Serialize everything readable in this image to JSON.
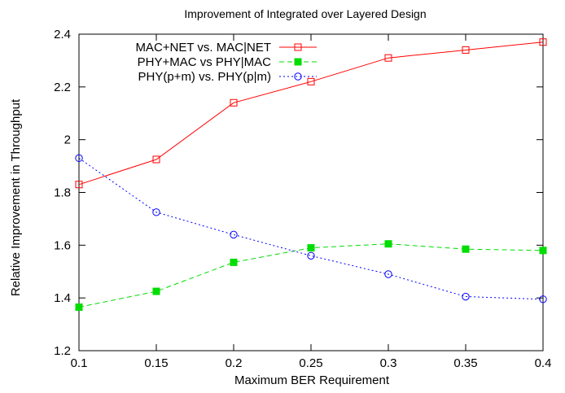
{
  "chart_data": {
    "type": "line",
    "title": "Improvement of Integrated over Layered Design",
    "xlabel": "Maximum BER Requirement",
    "ylabel": "Relative Improvement in Throughput",
    "xlim": [
      0.1,
      0.4
    ],
    "ylim": [
      1.2,
      2.4
    ],
    "xticks": [
      "0.1",
      "0.15",
      "0.2",
      "0.25",
      "0.3",
      "0.35",
      "0.4"
    ],
    "yticks": [
      "1.2",
      "1.4",
      "1.6",
      "1.8",
      "2",
      "2.2",
      "2.4"
    ],
    "grid": false,
    "legend_position": "top-right",
    "x": [
      0.1,
      0.15,
      0.2,
      0.25,
      0.3,
      0.35,
      0.4
    ],
    "series": [
      {
        "name": "MAC+NET vs. MAC|NET",
        "values": [
          1.83,
          1.925,
          2.14,
          2.22,
          2.31,
          2.34,
          2.37
        ],
        "color": "#ff0000",
        "dash": "solid",
        "marker": "open-square"
      },
      {
        "name": "PHY+MAC vs PHY|MAC",
        "values": [
          1.365,
          1.425,
          1.535,
          1.59,
          1.605,
          1.585,
          1.58
        ],
        "color": "#00dd00",
        "dash": "dashed",
        "marker": "filled-square"
      },
      {
        "name": "PHY(p+m) vs. PHY(p|m)",
        "values": [
          1.93,
          1.725,
          1.64,
          1.56,
          1.49,
          1.405,
          1.395
        ],
        "color": "#0000ff",
        "dash": "dotted",
        "marker": "open-circle"
      }
    ]
  }
}
